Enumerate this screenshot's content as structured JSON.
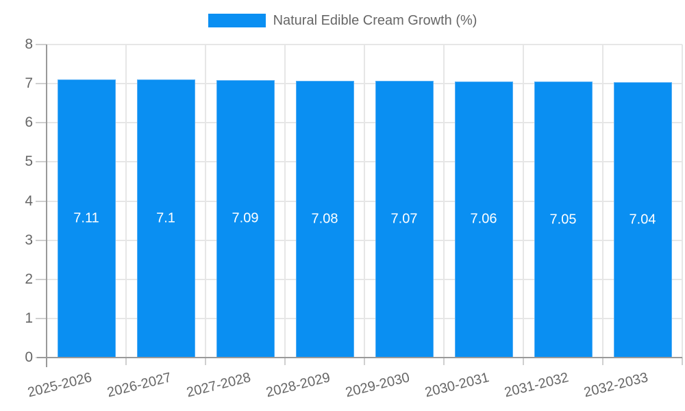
{
  "legend": {
    "label": "Natural Edible Cream Growth (%)"
  },
  "chart_data": {
    "type": "bar",
    "title": "Natural Edible Cream Growth (%)",
    "categories": [
      "2025-2026",
      "2026-2027",
      "2027-2028",
      "2028-2029",
      "2029-2030",
      "2030-2031",
      "2031-2032",
      "2032-2033"
    ],
    "values": [
      7.11,
      7.1,
      7.09,
      7.08,
      7.07,
      7.06,
      7.05,
      7.04
    ],
    "value_labels": [
      "7.11",
      "7.1",
      "7.09",
      "7.08",
      "7.07",
      "7.06",
      "7.05",
      "7.04"
    ],
    "xlabel": "",
    "ylabel": "",
    "ylim": [
      0,
      8
    ],
    "yticks": [
      "0",
      "1",
      "2",
      "3",
      "4",
      "5",
      "6",
      "7",
      "8"
    ],
    "grid": true,
    "legend_position": "top",
    "bar_labels_inside": true,
    "colors": {
      "bar": "#0a8ff2",
      "bar_border": "#55aef5",
      "bar_label_text": "#ffffff",
      "axis_text": "#666666",
      "grid_line": "#e6e6e6",
      "axis_line": "#999999",
      "tick_mark": "#cfcfcf"
    }
  }
}
